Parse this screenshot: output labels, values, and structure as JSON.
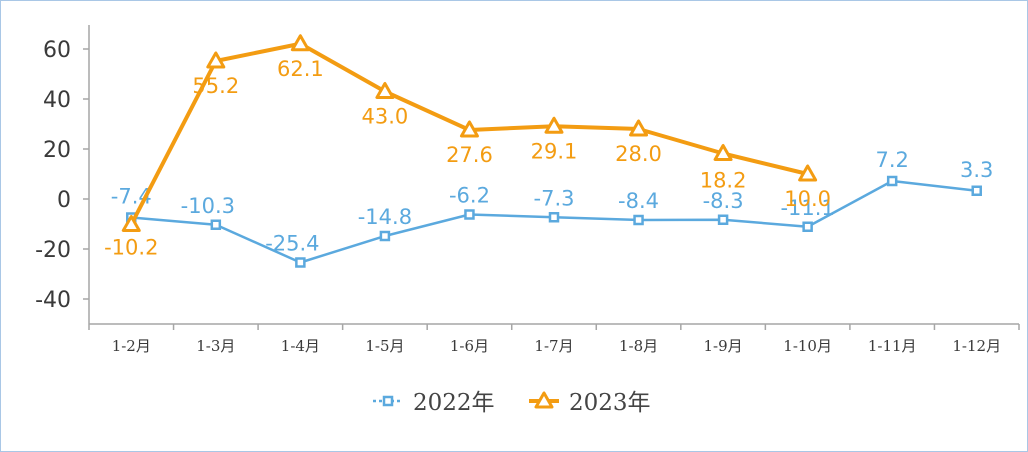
{
  "chart_data": {
    "type": "line",
    "title": "",
    "xlabel": "",
    "ylabel": "",
    "categories": [
      "1-2月",
      "1-3月",
      "1-4月",
      "1-5月",
      "1-6月",
      "1-7月",
      "1-8月",
      "1-9月",
      "1-10月",
      "1-11月",
      "1-12月"
    ],
    "ylim": [
      -50,
      70
    ],
    "yticks": [
      -40,
      -20,
      0,
      20,
      40,
      60
    ],
    "grid": false,
    "legend_position": "bottom",
    "series": [
      {
        "name": "2022年",
        "color": "#5ba9de",
        "marker": "square",
        "values": [
          -7.4,
          -10.3,
          -25.4,
          -14.8,
          -6.2,
          -7.3,
          -8.4,
          -8.3,
          -11.1,
          7.2,
          3.3
        ],
        "labels": [
          "-7.4",
          "-10.3",
          "-25.4",
          "-14.8",
          "-6.2",
          "-7.3",
          "-8.4",
          "-8.3",
          "-11.1",
          "7.2",
          "3.3"
        ]
      },
      {
        "name": "2023年",
        "color": "#f39c12",
        "marker": "triangle",
        "values": [
          -10.2,
          55.2,
          62.1,
          43.0,
          27.6,
          29.1,
          28.0,
          18.2,
          10.0,
          null,
          null
        ],
        "labels": [
          "-10.2",
          "55.2",
          "62.1",
          "43.0",
          "27.6",
          "29.1",
          "28.0",
          "18.2",
          "10.0",
          "",
          ""
        ]
      }
    ]
  }
}
